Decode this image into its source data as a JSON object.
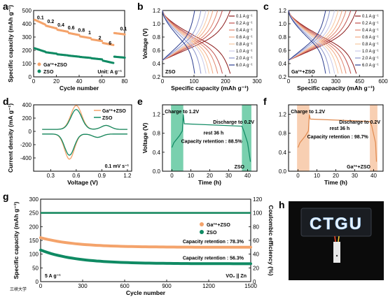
{
  "colors": {
    "orange": "#f4a36b",
    "teal": "#0f8a63",
    "bg_green": "#58c49a",
    "bg_orange": "#f6c39f"
  },
  "icons": {
    "led_panel": "ctgu-led-sign-photo"
  },
  "chart_data": [
    {
      "panel": "a",
      "type": "scatter",
      "xlabel": "Cycle number",
      "ylabel": "Specific capacity (mAh g⁻¹)",
      "xlim": [
        0,
        80
      ],
      "ylim": [
        0,
        500
      ],
      "xticks": [
        "0",
        "20",
        "40",
        "60",
        "80"
      ],
      "yticks": [
        "0",
        "100",
        "200",
        "300",
        "400",
        "500"
      ],
      "rate_labels": [
        {
          "text": "0.1",
          "x": 3,
          "y": 435
        },
        {
          "text": "0.2",
          "x": 12,
          "y": 405
        },
        {
          "text": "0.4",
          "x": 21,
          "y": 378
        },
        {
          "text": "0.6",
          "x": 30,
          "y": 358
        },
        {
          "text": "0.8",
          "x": 39,
          "y": 340
        },
        {
          "text": "1",
          "x": 48,
          "y": 320
        },
        {
          "text": "2",
          "x": 57,
          "y": 282
        },
        {
          "text": "6",
          "x": 66,
          "y": 242
        },
        {
          "text": "0.1",
          "x": 76,
          "y": 350
        }
      ],
      "unit_note": "Unit: A g⁻¹",
      "series": [
        {
          "name": "Ga³⁺+ZSO",
          "color": "#f4a36b",
          "steps": [
            [
              1,
              10,
              430,
              395
            ],
            [
              11,
              20,
              385,
              365
            ],
            [
              21,
              30,
              355,
              340
            ],
            [
              31,
              40,
              330,
              315
            ],
            [
              41,
              50,
              305,
              292
            ],
            [
              51,
              60,
              282,
              270
            ],
            [
              61,
              70,
              255,
              240
            ],
            [
              71,
              80,
              330,
              320
            ]
          ]
        },
        {
          "name": "ZSO",
          "color": "#0f8a63",
          "steps": [
            [
              1,
              10,
              215,
              190
            ],
            [
              11,
              20,
              185,
              175
            ],
            [
              21,
              30,
              170,
              162
            ],
            [
              31,
              40,
              160,
              152
            ],
            [
              41,
              50,
              150,
              143
            ],
            [
              51,
              60,
              140,
              132
            ],
            [
              61,
              70,
              122,
              105
            ],
            [
              71,
              80,
              152,
              145
            ]
          ]
        }
      ]
    },
    {
      "panel": "b",
      "type": "line",
      "xlabel": "Specific capacity (mAh g⁻¹)",
      "ylabel": "Voltage (V)",
      "xlim": [
        0,
        300
      ],
      "ylim": [
        0.2,
        1.2
      ],
      "xticks": [
        "0",
        "100",
        "200",
        "300"
      ],
      "yticks": [
        "0.2",
        "0.4",
        "0.6",
        "0.8",
        "1.0",
        "1.2"
      ],
      "note": "ZSO",
      "series": [
        {
          "name": "0.1 A g⁻¹",
          "cap": 215,
          "color": "#8b1a1a"
        },
        {
          "name": "0.2 A g⁻¹",
          "cap": 190,
          "color": "#c0504d"
        },
        {
          "name": "0.4 A g⁻¹",
          "cap": 175,
          "color": "#e0836c"
        },
        {
          "name": "0.6 A g⁻¹",
          "cap": 160,
          "color": "#f2a882"
        },
        {
          "name": "0.8 A g⁻¹",
          "cap": 148,
          "color": "#f7c8a0"
        },
        {
          "name": "1.0 A g⁻¹",
          "cap": 138,
          "color": "#c9c9e8"
        },
        {
          "name": "2.0 A g⁻¹",
          "cap": 122,
          "color": "#8a94cc"
        },
        {
          "name": "6.0 A g⁻¹",
          "cap": 102,
          "color": "#2b3d8f"
        }
      ]
    },
    {
      "panel": "c",
      "type": "line",
      "xlabel": "Specific capacity (mAh g⁻¹)",
      "ylabel": "",
      "xlim": [
        0,
        600
      ],
      "ylim": [
        0.2,
        1.2
      ],
      "xticks": [
        "0",
        "150",
        "300",
        "450",
        "600"
      ],
      "yticks": [
        "0.2",
        "0.4",
        "0.6",
        "0.8",
        "1.0",
        "1.2"
      ],
      "note": "Ga³⁺+ZSO",
      "series": [
        {
          "name": "0.1 A g⁻¹",
          "cap": 430,
          "color": "#8b1a1a"
        },
        {
          "name": "0.2 A g⁻¹",
          "cap": 395,
          "color": "#c0504d"
        },
        {
          "name": "0.4 A g⁻¹",
          "cap": 365,
          "color": "#e0836c"
        },
        {
          "name": "0.6 A g⁻¹",
          "cap": 340,
          "color": "#f2a882"
        },
        {
          "name": "0.8 A g⁻¹",
          "cap": 315,
          "color": "#f7c8a0"
        },
        {
          "name": "1.0 A g⁻¹",
          "cap": 292,
          "color": "#c9c9e8"
        },
        {
          "name": "2.0 A g⁻¹",
          "cap": 262,
          "color": "#8a94cc"
        },
        {
          "name": "6.0 A g⁻¹",
          "cap": 235,
          "color": "#2b3d8f"
        }
      ]
    },
    {
      "panel": "d",
      "type": "line",
      "xlabel": "Voltage (V)",
      "ylabel": "Current density (mA g⁻¹)",
      "xlim": [
        0.1,
        1.25
      ],
      "ylim": [
        -600,
        400
      ],
      "xticks": [
        "0.3",
        "0.6",
        "0.9",
        "1.2"
      ],
      "yticks": [
        "-400",
        "-200",
        "0",
        "200",
        "400"
      ],
      "note": "0.1 mV s⁻¹",
      "series": [
        {
          "name": "Ga³⁺+ZSO",
          "color": "#f4a36b",
          "peak_ox": 360,
          "peak_red": -380
        },
        {
          "name": "ZSO",
          "color": "#0f8a63",
          "peak_ox": 300,
          "peak_red": -320
        }
      ]
    },
    {
      "panel": "e",
      "type": "line",
      "xlabel": "Time (h)",
      "ylabel": "Voltage (V)",
      "xlim": [
        -5,
        45
      ],
      "ylim": [
        0,
        1.4
      ],
      "xticks": [
        "0",
        "10",
        "20",
        "30",
        "40"
      ],
      "yticks": [
        "0.0",
        "0.4",
        "0.8",
        "1.2"
      ],
      "charge_label": "Charge to 1.2V",
      "discharge_label": "Discharge to 0.2V",
      "rest_label": "rest 36 h",
      "retention": "Capacity retention : 88.5%",
      "note": "ZSO",
      "charge_end": 6,
      "rest_end": 37,
      "end": 42,
      "rest_voltage": 0.95
    },
    {
      "panel": "f",
      "type": "line",
      "xlabel": "Time (h)",
      "ylabel": "",
      "xlim": [
        -5,
        45
      ],
      "ylim": [
        0,
        1.4
      ],
      "xticks": [
        "0",
        "10",
        "20",
        "30",
        "40"
      ],
      "yticks": [
        "0.0",
        "0.4",
        "0.8",
        "1.2"
      ],
      "charge_label": "Charge to 1.2V",
      "discharge_label": "Discharge to 0.2V",
      "rest_label": "rest 36 h",
      "retention": "Capacity retention : 98.7%",
      "note": "Ga³⁺+ZSO",
      "charge_end": 6,
      "rest_end": 38,
      "end": 42,
      "rest_voltage": 1.05
    },
    {
      "panel": "g",
      "type": "scatter",
      "xlabel": "Cycle number",
      "ylabel": "Specific capacity (mAh g⁻¹)",
      "y2label": "Coulombic efficiency (%)",
      "xlim": [
        0,
        1500
      ],
      "ylim": [
        0,
        300
      ],
      "y2lim": [
        0,
        120
      ],
      "xticks": [
        "0",
        "300",
        "600",
        "900",
        "1200",
        "1500"
      ],
      "yticks": [
        "0",
        "50",
        "100",
        "150",
        "200",
        "250",
        "300"
      ],
      "y2ticks": [
        "0",
        "20",
        "40",
        "60",
        "80",
        "100",
        "120"
      ],
      "retention_ga": "Capacity retention : 78.3%",
      "retention_zso": "Capacity retention : 56.3%",
      "rate_note": "5 A g⁻¹",
      "cell_note": "VO₂ || Zn",
      "series": [
        {
          "name": "Ga³⁺+ZSO",
          "color": "#f4a36b",
          "start": 160,
          "end": 125,
          "ce": 100
        },
        {
          "name": "ZSO",
          "color": "#0f8a63",
          "start": 115,
          "end": 65,
          "ce": 100
        }
      ]
    }
  ],
  "photo_text": "CTGU",
  "watermark": "三峡大学"
}
